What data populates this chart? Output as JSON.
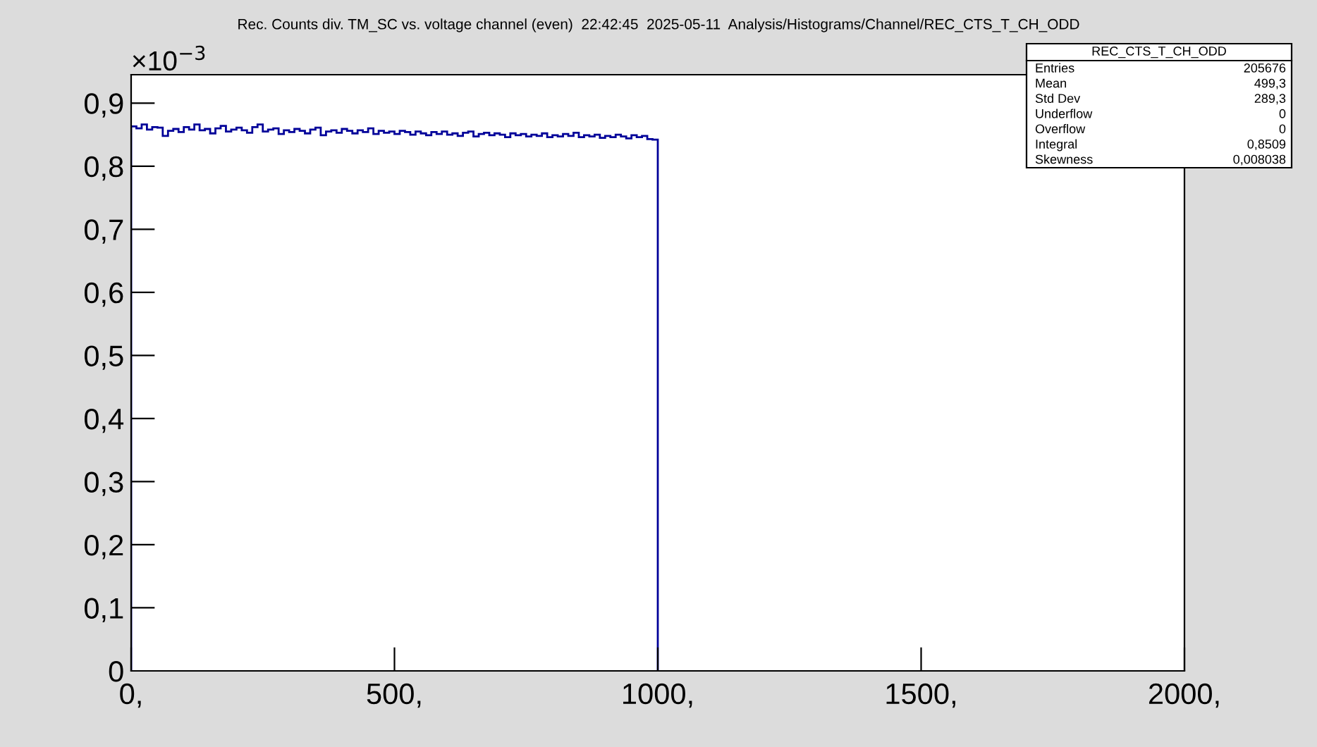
{
  "chart_data": {
    "type": "histogram",
    "title": "Rec. Counts div. TM_SC vs. voltage channel (even)  22:42:45  2025-05-11  Analysis/Histograms/Channel/REC_CTS_T_CH_ODD",
    "bins": [
      0,
      10,
      20,
      30,
      40,
      50,
      60,
      70,
      80,
      90,
      100,
      110,
      120,
      130,
      140,
      150,
      160,
      170,
      180,
      190,
      200,
      210,
      220,
      230,
      240,
      250,
      260,
      270,
      280,
      290,
      300,
      310,
      320,
      330,
      340,
      350,
      360,
      370,
      380,
      390,
      400,
      410,
      420,
      430,
      440,
      450,
      460,
      470,
      480,
      490,
      500,
      510,
      520,
      530,
      540,
      550,
      560,
      570,
      580,
      590,
      600,
      610,
      620,
      630,
      640,
      650,
      660,
      670,
      680,
      690,
      700,
      710,
      720,
      730,
      740,
      750,
      760,
      770,
      780,
      790,
      800,
      810,
      820,
      830,
      840,
      850,
      860,
      870,
      880,
      890,
      900,
      910,
      920,
      930,
      940,
      950,
      960,
      970,
      980,
      990,
      1000
    ],
    "values": [
      0.863,
      0.86,
      0.866,
      0.858,
      0.862,
      0.861,
      0.848,
      0.856,
      0.859,
      0.854,
      0.862,
      0.858,
      0.866,
      0.857,
      0.859,
      0.852,
      0.86,
      0.864,
      0.855,
      0.858,
      0.861,
      0.857,
      0.853,
      0.862,
      0.866,
      0.855,
      0.858,
      0.86,
      0.851,
      0.857,
      0.854,
      0.859,
      0.856,
      0.852,
      0.858,
      0.861,
      0.849,
      0.855,
      0.857,
      0.853,
      0.859,
      0.856,
      0.852,
      0.857,
      0.854,
      0.86,
      0.851,
      0.856,
      0.853,
      0.855,
      0.851,
      0.856,
      0.854,
      0.85,
      0.855,
      0.852,
      0.849,
      0.854,
      0.851,
      0.855,
      0.85,
      0.852,
      0.848,
      0.853,
      0.855,
      0.847,
      0.851,
      0.853,
      0.849,
      0.852,
      0.85,
      0.846,
      0.852,
      0.849,
      0.851,
      0.847,
      0.85,
      0.848,
      0.852,
      0.846,
      0.849,
      0.847,
      0.851,
      0.848,
      0.853,
      0.846,
      0.849,
      0.847,
      0.85,
      0.845,
      0.848,
      0.846,
      0.85,
      0.847,
      0.844,
      0.849,
      0.846,
      0.848,
      0.843,
      0.842
    ],
    "color": "#000099",
    "xlim": [
      0,
      2000
    ],
    "xticks": [
      {
        "value": 0,
        "label": "0,"
      },
      {
        "value": 500,
        "label": "500,"
      },
      {
        "value": 1000,
        "label": "1000,"
      },
      {
        "value": 1500,
        "label": "1500,"
      },
      {
        "value": 2000,
        "label": "2000,"
      }
    ],
    "ylim": [
      0,
      0.945
    ],
    "yticks": [
      {
        "value": 0,
        "label": "0"
      },
      {
        "value": 0.1,
        "label": "0,1"
      },
      {
        "value": 0.2,
        "label": "0,2"
      },
      {
        "value": 0.3,
        "label": "0,3"
      },
      {
        "value": 0.4,
        "label": "0,4"
      },
      {
        "value": 0.5,
        "label": "0,5"
      },
      {
        "value": 0.6,
        "label": "0,6"
      },
      {
        "value": 0.7,
        "label": "0,7"
      },
      {
        "value": 0.8,
        "label": "0,8"
      },
      {
        "value": 0.9,
        "label": "0,9"
      }
    ],
    "grid": false,
    "annotations": [
      "×10$^{−3}$",
      "REC_CTS_T_CH_ODD",
      "Entries",
      "205676",
      "Mean",
      "499,3",
      "Std Dev",
      "289,3",
      "Underflow",
      "0",
      "Overflow",
      "0",
      "Integral",
      "0,8509",
      "Skewness",
      "0,008038"
    ]
  }
}
